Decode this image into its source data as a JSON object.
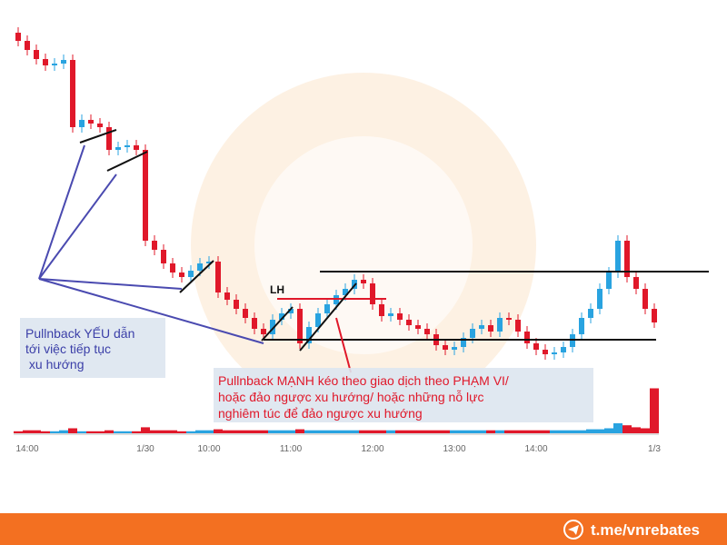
{
  "chart_data": {
    "type": "candlestick",
    "categories": [
      null,
      "14:00",
      null,
      null,
      null,
      null,
      null,
      null,
      null,
      null,
      null,
      null,
      null,
      null,
      "1/30",
      null,
      null,
      null,
      null,
      null,
      null,
      "10:00",
      null,
      null,
      null,
      null,
      null,
      null,
      null,
      null,
      "11:00",
      null,
      null,
      null,
      null,
      null,
      null,
      null,
      null,
      "12:00",
      null,
      null,
      null,
      null,
      null,
      null,
      null,
      null,
      "13:00",
      null,
      null,
      null,
      null,
      null,
      null,
      null,
      null,
      "14:00",
      null,
      null,
      null,
      null,
      null,
      null,
      null,
      null,
      null,
      null,
      null,
      null,
      "1/3"
    ],
    "open": [
      96,
      93.75,
      91.25,
      88.75,
      87,
      87.5,
      88.5,
      70,
      72,
      71,
      70,
      63.75,
      64.5,
      65,
      63.75,
      38.75,
      36.25,
      32.5,
      30,
      28.75,
      30.5,
      32.5,
      33,
      24.5,
      22.5,
      20,
      17.5,
      14.5,
      13,
      17,
      18.75,
      20,
      10.5,
      15,
      18.75,
      21.25,
      23.75,
      25.5,
      28,
      27,
      21.25,
      18,
      18.75,
      17,
      15.5,
      14.5,
      13,
      10,
      8.75,
      9.5,
      12,
      14.5,
      15.5,
      13.75,
      17.5,
      17,
      13.75,
      10.5,
      8.75,
      7.5,
      8,
      9.5,
      13,
      17.5,
      20,
      25.5,
      30,
      38.75,
      28.75,
      25.5,
      20
    ],
    "high": [
      97.5,
      95.25,
      92.75,
      90.25,
      89,
      90,
      90,
      73.5,
      73.5,
      72.5,
      71.5,
      66,
      66.5,
      66.5,
      65.25,
      40.25,
      37.75,
      34,
      31.5,
      32,
      34,
      34.5,
      34.5,
      26,
      24,
      21.5,
      19,
      16,
      18.5,
      20.25,
      21.5,
      21.5,
      16.5,
      20.25,
      22.75,
      25.25,
      27,
      29.5,
      29.5,
      28.5,
      22.75,
      20.25,
      20.25,
      18.5,
      17,
      16,
      14.5,
      11.5,
      11,
      13.5,
      16,
      17,
      17,
      19,
      19,
      18.5,
      15.25,
      12,
      10.25,
      9.5,
      11,
      14.5,
      19,
      21.5,
      27,
      31.5,
      40.25,
      40.25,
      30.25,
      27,
      21.5
    ],
    "low": [
      92.25,
      89.75,
      87.25,
      85.5,
      85.5,
      86,
      68.5,
      68.5,
      69.5,
      68.5,
      62.25,
      62.25,
      63,
      62.25,
      37.25,
      34.75,
      31,
      28.5,
      27.25,
      27.25,
      29,
      31,
      23,
      21,
      18.5,
      16,
      13,
      11.5,
      11.5,
      15.5,
      17.25,
      9,
      9,
      13.5,
      17.25,
      19.75,
      22.25,
      24,
      25.5,
      19.75,
      16.5,
      16.5,
      15.5,
      14,
      13,
      11.5,
      8.5,
      7.25,
      7.25,
      8,
      10.5,
      13,
      12.25,
      12.25,
      15.5,
      12.25,
      9,
      7.25,
      6,
      6,
      6.5,
      8,
      11.5,
      16,
      18.5,
      24,
      28.5,
      27.25,
      24,
      18.5,
      14.75
    ],
    "close": [
      93.75,
      91.25,
      88.75,
      87,
      87.5,
      88.5,
      70,
      72,
      71,
      70,
      63.75,
      64.5,
      65,
      63.75,
      38.75,
      36.25,
      32.5,
      30,
      28.75,
      30.5,
      32.5,
      33,
      24.5,
      22.5,
      20,
      17.5,
      14.5,
      13,
      17,
      18.75,
      20,
      10.5,
      15,
      18.75,
      21.25,
      23.75,
      25.5,
      28,
      27,
      21.25,
      18,
      18.75,
      17,
      15.5,
      14.5,
      13,
      10,
      8.75,
      9.5,
      12,
      14.5,
      15.5,
      13.75,
      17.5,
      17,
      13.75,
      10.5,
      8.75,
      7.5,
      8,
      9.5,
      13,
      17.5,
      20,
      25.5,
      30,
      38.75,
      28.75,
      25.5,
      20,
      16.25
    ],
    "volume": [
      2,
      3,
      3,
      2,
      2,
      3,
      5,
      2,
      2,
      2,
      3,
      2,
      2,
      2,
      6,
      3,
      3,
      3,
      2,
      2,
      3,
      3,
      4,
      3,
      3,
      3,
      3,
      3,
      3,
      3,
      3,
      4,
      3,
      3,
      3,
      3,
      3,
      3,
      3,
      3,
      3,
      3,
      3,
      3,
      3,
      3,
      3,
      3,
      3,
      3,
      3,
      3,
      3,
      3,
      3,
      3,
      3,
      3,
      3,
      3,
      3,
      3,
      3,
      4,
      4,
      5,
      10,
      8,
      6,
      5,
      45
    ],
    "up_color": "#29a3e0",
    "down_color": "#e0182a",
    "ylim": [
      0,
      100
    ],
    "volume_lim": [
      0,
      50
    ],
    "annotations": {
      "label_lh": "LH",
      "weak": [
        "Pullnback YẾU dẫn",
        "tới việc tiếp tục",
        " xu hướng"
      ],
      "strong": [
        "Pullnback MẠNH kéo theo giao dịch theo PHẠM VI/",
        "hoặc đảo ngược xu hướng/ hoặc những nỗ lực",
        "nghiêm túc để đảo ngược xu hướng"
      ]
    },
    "footer": "t.me/vnrebates"
  }
}
